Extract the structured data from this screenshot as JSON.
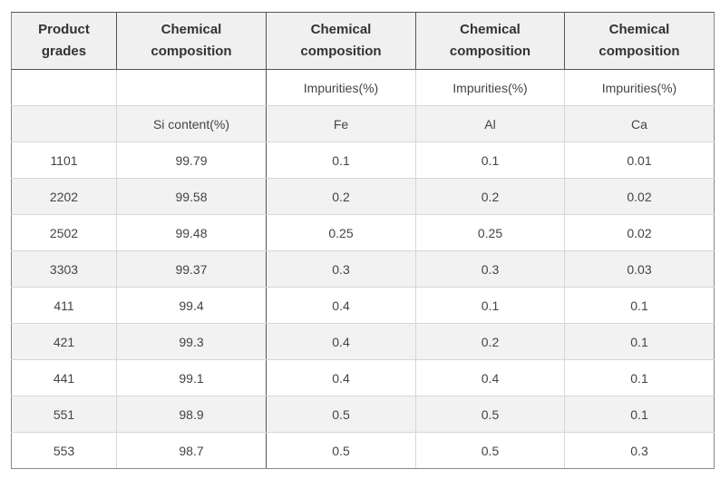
{
  "table": {
    "header": [
      "Product\ngrades",
      "Chemical\ncomposition",
      "Chemical\ncomposition",
      "Chemical\ncomposition",
      "Chemical\ncomposition"
    ],
    "subheader1": [
      "",
      "",
      "Impurities(%)",
      "Impurities(%)",
      "Impurities(%)"
    ],
    "subheader2": [
      "",
      "Si content(%)",
      "Fe",
      "Al",
      "Ca"
    ],
    "rows": [
      [
        "1101",
        "99.79",
        "0.1",
        "0.1",
        "0.01"
      ],
      [
        "2202",
        "99.58",
        "0.2",
        "0.2",
        "0.02"
      ],
      [
        "2502",
        "99.48",
        "0.25",
        "0.25",
        "0.02"
      ],
      [
        "3303",
        "99.37",
        "0.3",
        "0.3",
        "0.03"
      ],
      [
        "411",
        "99.4",
        "0.4",
        "0.1",
        "0.1"
      ],
      [
        "421",
        "99.3",
        "0.4",
        "0.2",
        "0.1"
      ],
      [
        "441",
        "99.1",
        "0.4",
        "0.4",
        "0.1"
      ],
      [
        "551",
        "98.9",
        "0.5",
        "0.5",
        "0.1"
      ],
      [
        "553",
        "98.7",
        "0.5",
        "0.5",
        "0.3"
      ]
    ]
  }
}
